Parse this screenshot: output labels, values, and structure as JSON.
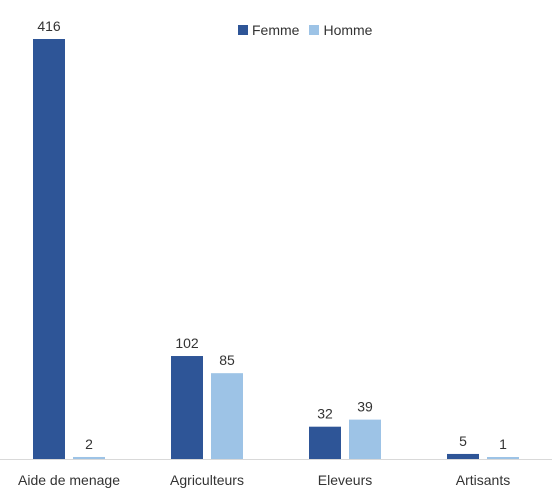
{
  "chart_data": {
    "type": "bar",
    "title": "",
    "xlabel": "",
    "ylabel": "",
    "categories": [
      "Aide de menage",
      "Agriculteurs",
      "Eleveurs",
      "Artisants"
    ],
    "series": [
      {
        "name": "Femme",
        "values": [
          416,
          102,
          32,
          5
        ],
        "color": "#2e5597"
      },
      {
        "name": "Homme",
        "values": [
          2,
          85,
          39,
          1
        ],
        "color": "#9dc3e6"
      }
    ],
    "ylim": [
      0,
      416
    ],
    "legend": "top-right",
    "grid": false
  }
}
